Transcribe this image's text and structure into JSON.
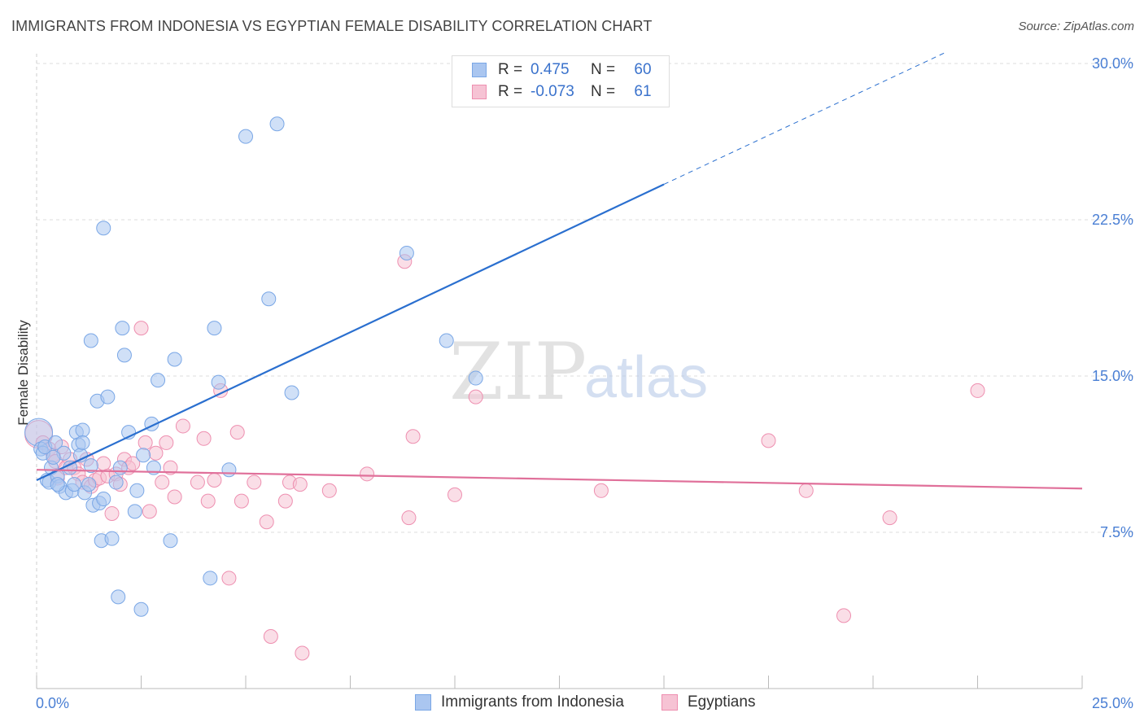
{
  "title": "IMMIGRANTS FROM INDONESIA VS EGYPTIAN FEMALE DISABILITY CORRELATION CHART",
  "source": "Source: ZipAtlas.com",
  "watermark": {
    "zip": "ZIP",
    "atlas": "atlas"
  },
  "colors": {
    "blue": "#7aa7e6",
    "blue_fill": "#aac6f0",
    "blue_line": "#2a6fcf",
    "pink": "#ee8fb0",
    "pink_fill": "#f6c3d4",
    "pink_line": "#e0709a",
    "tick": "#4a7fd4"
  },
  "legend": {
    "r_label": "R =",
    "n_label": "N =",
    "series": [
      {
        "r": "0.475",
        "n": "60"
      },
      {
        "r": "-0.073",
        "n": "61"
      }
    ]
  },
  "bottom_legend": {
    "blue": "Immigrants from Indonesia",
    "pink": "Egyptians"
  },
  "chart_data": {
    "type": "scatter",
    "title": "IMMIGRANTS FROM INDONESIA VS EGYPTIAN FEMALE DISABILITY CORRELATION CHART",
    "xlabel": "",
    "ylabel": "Female Disability",
    "xlim": [
      0,
      25
    ],
    "ylim": [
      0,
      30
    ],
    "x_tick_labels": [
      "0.0%",
      "25.0%"
    ],
    "y_tick_labels": [
      "7.5%",
      "15.0%",
      "22.5%",
      "30.0%"
    ],
    "y_ticks": [
      7.5,
      15.0,
      22.5,
      30.0
    ],
    "series": [
      {
        "name": "Immigrants from Indonesia",
        "color": "blue",
        "r": 0.475,
        "n": 60,
        "trend": {
          "x0": 0.0,
          "y0": 10.0,
          "x1": 15.0,
          "y1": 24.2,
          "dash_to_x": 21.7,
          "dash_to_y": 30.5
        },
        "points": [
          [
            0.05,
            12.3
          ],
          [
            0.1,
            11.5
          ],
          [
            0.15,
            11.3
          ],
          [
            0.2,
            11.6
          ],
          [
            0.25,
            10.0
          ],
          [
            0.3,
            9.9
          ],
          [
            0.35,
            10.6
          ],
          [
            0.45,
            11.8
          ],
          [
            0.5,
            10.2
          ],
          [
            0.55,
            9.7
          ],
          [
            0.65,
            11.3
          ],
          [
            0.7,
            9.4
          ],
          [
            0.8,
            10.6
          ],
          [
            0.85,
            9.5
          ],
          [
            0.9,
            9.8
          ],
          [
            0.95,
            12.3
          ],
          [
            1.0,
            11.7
          ],
          [
            1.05,
            11.2
          ],
          [
            1.1,
            12.4
          ],
          [
            1.1,
            11.8
          ],
          [
            1.15,
            9.4
          ],
          [
            1.25,
            9.8
          ],
          [
            1.3,
            10.7
          ],
          [
            1.35,
            8.8
          ],
          [
            1.45,
            13.8
          ],
          [
            1.5,
            8.9
          ],
          [
            1.55,
            7.1
          ],
          [
            1.6,
            9.1
          ],
          [
            1.7,
            14.0
          ],
          [
            1.8,
            7.2
          ],
          [
            1.9,
            9.9
          ],
          [
            1.95,
            4.4
          ],
          [
            2.0,
            10.6
          ],
          [
            2.05,
            17.3
          ],
          [
            2.1,
            16.0
          ],
          [
            2.2,
            12.3
          ],
          [
            2.35,
            8.5
          ],
          [
            2.4,
            9.5
          ],
          [
            2.5,
            3.8
          ],
          [
            2.55,
            11.2
          ],
          [
            2.75,
            12.7
          ],
          [
            2.8,
            10.6
          ],
          [
            2.9,
            14.8
          ],
          [
            3.2,
            7.1
          ],
          [
            3.3,
            15.8
          ],
          [
            4.15,
            5.3
          ],
          [
            4.25,
            17.3
          ],
          [
            4.35,
            14.7
          ],
          [
            4.6,
            10.5
          ],
          [
            1.3,
            16.7
          ],
          [
            1.6,
            22.1
          ],
          [
            5.0,
            26.5
          ],
          [
            5.55,
            18.7
          ],
          [
            5.75,
            27.1
          ],
          [
            6.1,
            14.2
          ],
          [
            8.85,
            20.9
          ],
          [
            9.8,
            16.7
          ],
          [
            10.5,
            14.9
          ],
          [
            0.5,
            9.8
          ],
          [
            0.4,
            11.1
          ]
        ]
      },
      {
        "name": "Egyptians",
        "color": "pink",
        "r": -0.073,
        "n": 61,
        "trend": {
          "x0": 0.0,
          "y0": 10.5,
          "x1": 25.0,
          "y1": 9.6
        },
        "points": [
          [
            0.05,
            12.2
          ],
          [
            0.15,
            11.8
          ],
          [
            0.3,
            11.5
          ],
          [
            0.4,
            11.2
          ],
          [
            0.45,
            10.9
          ],
          [
            0.5,
            10.1
          ],
          [
            0.6,
            11.6
          ],
          [
            0.7,
            10.6
          ],
          [
            0.8,
            11.0
          ],
          [
            0.9,
            10.6
          ],
          [
            1.0,
            10.3
          ],
          [
            1.1,
            9.9
          ],
          [
            1.2,
            11.0
          ],
          [
            1.3,
            9.7
          ],
          [
            1.4,
            10.0
          ],
          [
            1.5,
            10.1
          ],
          [
            1.6,
            10.8
          ],
          [
            1.7,
            10.2
          ],
          [
            1.8,
            8.4
          ],
          [
            1.9,
            10.3
          ],
          [
            2.0,
            9.8
          ],
          [
            2.1,
            11.0
          ],
          [
            2.2,
            10.6
          ],
          [
            2.3,
            10.8
          ],
          [
            2.5,
            17.3
          ],
          [
            2.6,
            11.8
          ],
          [
            2.7,
            8.5
          ],
          [
            2.85,
            11.3
          ],
          [
            3.0,
            9.9
          ],
          [
            3.1,
            11.8
          ],
          [
            3.2,
            10.6
          ],
          [
            3.3,
            9.2
          ],
          [
            3.5,
            12.6
          ],
          [
            3.85,
            9.9
          ],
          [
            4.0,
            12.0
          ],
          [
            4.1,
            9.0
          ],
          [
            4.25,
            10.0
          ],
          [
            4.4,
            14.3
          ],
          [
            4.6,
            5.3
          ],
          [
            4.8,
            12.3
          ],
          [
            4.9,
            9.0
          ],
          [
            5.2,
            9.9
          ],
          [
            5.5,
            8.0
          ],
          [
            5.6,
            2.5
          ],
          [
            5.95,
            9.0
          ],
          [
            6.05,
            9.9
          ],
          [
            6.3,
            9.8
          ],
          [
            6.35,
            1.7
          ],
          [
            7.0,
            9.5
          ],
          [
            7.9,
            10.3
          ],
          [
            8.8,
            20.5
          ],
          [
            8.9,
            8.2
          ],
          [
            9.0,
            12.1
          ],
          [
            10.0,
            9.3
          ],
          [
            10.5,
            14.0
          ],
          [
            13.5,
            9.5
          ],
          [
            17.5,
            11.9
          ],
          [
            18.4,
            9.5
          ],
          [
            19.3,
            3.5
          ],
          [
            20.4,
            8.2
          ],
          [
            22.5,
            14.3
          ]
        ]
      }
    ]
  }
}
